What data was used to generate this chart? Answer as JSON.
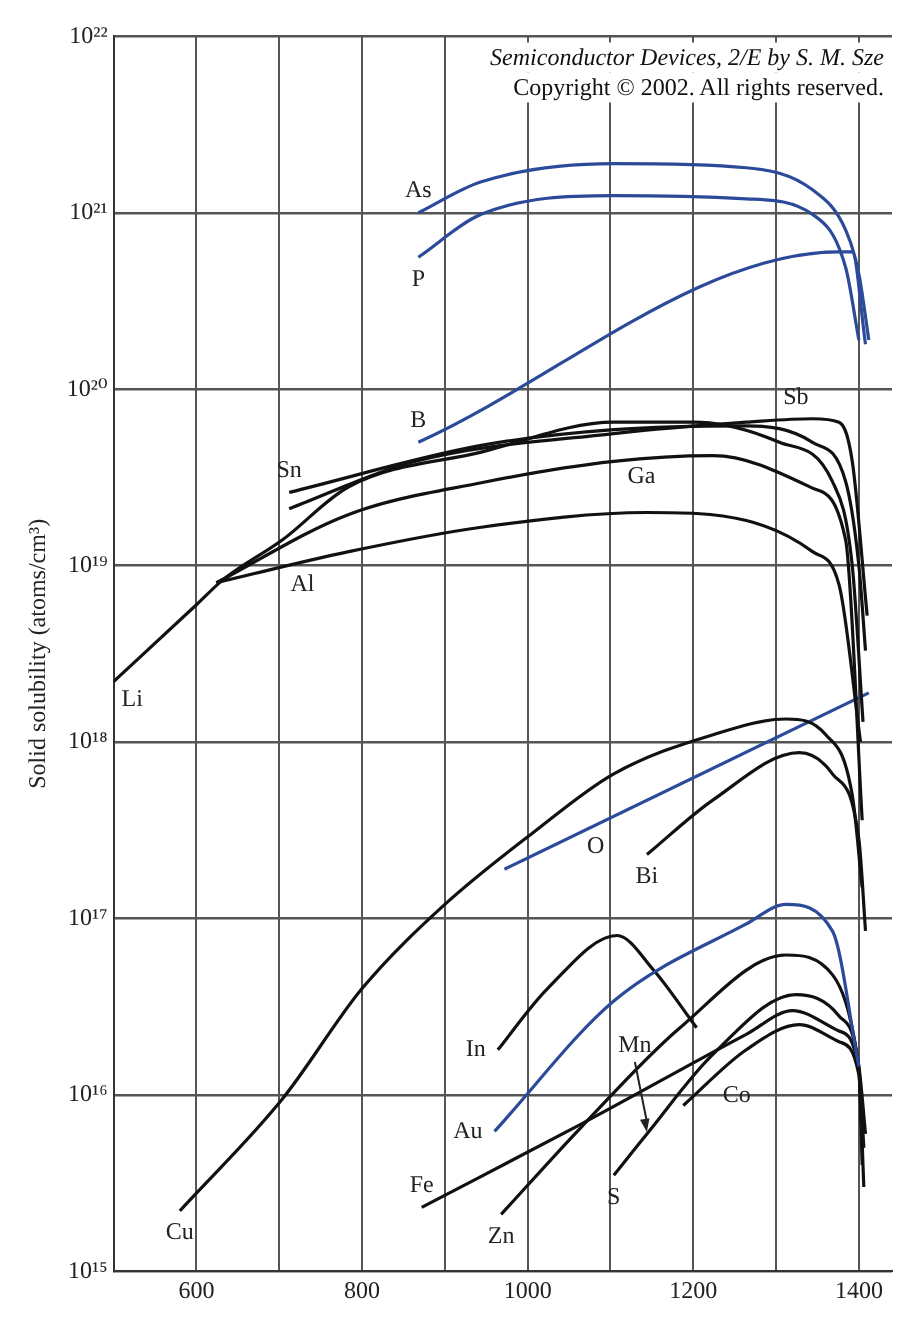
{
  "chart_data": {
    "type": "line",
    "ylabel": "Solid solubility (atoms/cm³)",
    "log": "y",
    "grid": true,
    "marker": "none",
    "line_style": "solid",
    "legend": false,
    "xlim": [
      500,
      1440
    ],
    "xticks": [
      {
        "value": 500,
        "label": null
      },
      600,
      {
        "value": 700,
        "label": null
      },
      800,
      {
        "value": 900,
        "label": null
      },
      1000,
      {
        "value": 1100,
        "label": null
      },
      1200,
      {
        "value": 1300,
        "label": null
      },
      1400
    ],
    "ylim": [
      1000000000000000.0,
      1e+22
    ],
    "yticks": [
      {
        "value": 1000000000000000.0,
        "label": "10¹⁵"
      },
      {
        "value": 1e+16,
        "label": "10¹⁶"
      },
      {
        "value": 1e+17,
        "label": "10¹⁷"
      },
      {
        "value": 1e+18,
        "label": "10¹⁸"
      },
      {
        "value": 1e+19,
        "label": "10¹⁹"
      },
      {
        "value": 1e+20,
        "label": "10²⁰"
      },
      {
        "value": 1e+21,
        "label": "10²¹"
      },
      {
        "value": 1e+22,
        "label": "10²²"
      }
    ],
    "series": [
      {
        "name": "As",
        "color": "#2b4a9a",
        "x": [
          868,
          944,
          1104,
          1264,
          1344,
          1384,
          1400,
          1412
        ],
        "values": [
          1e+21,
          1.5e+21,
          1.9e+21,
          1.8e+21,
          1.35e+21,
          8e+20,
          4.5e+20,
          1.9e+20
        ]
      },
      {
        "name": "P",
        "color": "#2b4a9a",
        "x": [
          868,
          944,
          1104,
          1264,
          1344,
          1384,
          1400
        ],
        "values": [
          5.6e+20,
          9.8e+20,
          1.25e+21,
          1.2e+21,
          9.8e+20,
          4.9e+20,
          1.9e+20
        ]
      },
      {
        "name": "B",
        "color": "#2b4a9a",
        "x": [
          868,
          1376,
          1392,
          1408
        ],
        "values": [
          5e+19,
          6e+20,
          6e+20,
          1.8e+20
        ]
      },
      {
        "name": "Li",
        "color": "#111111",
        "x": [
          500,
          600,
          632,
          704,
          784,
          944,
          1104,
          1200,
          1304,
          1368,
          1392,
          1405
        ],
        "values": [
          2.2e+18,
          6e+18,
          8.3e+18,
          1.4e+19,
          2.8e+19,
          4.4e+19,
          6.5e+19,
          6.5e+19,
          5e+19,
          3e+19,
          1e+19,
          1.3e+18
        ]
      },
      {
        "name": "Sn",
        "color": "#111111",
        "x": [
          712,
          944,
          1104,
          1264,
          1344,
          1384,
          1400,
          1408
        ],
        "values": [
          2.6e+19,
          4.8e+19,
          5.9e+19,
          6.2e+19,
          5e+19,
          3e+19,
          1e+19,
          3.3e+18
        ]
      },
      {
        "name": "Sb",
        "color": "#111111",
        "x": [
          712,
          864,
          1104,
          1264,
          1344,
          1376,
          1392,
          1410
        ],
        "values": [
          2.1e+19,
          3.9e+19,
          5.6e+19,
          6.5e+19,
          6.8e+19,
          6.5e+19,
          3.9e+19,
          5.2e+18
        ]
      },
      {
        "name": "Ga",
        "color": "#111111",
        "x": [
          624,
          784,
          944,
          1104,
          1224,
          1344,
          1384,
          1404
        ],
        "values": [
          8e+18,
          1.95e+19,
          2.95e+19,
          3.9e+19,
          4.2e+19,
          2.75e+19,
          1.4e+19,
          3.6e+17
        ]
      },
      {
        "name": "Al",
        "color": "#111111",
        "x": [
          624,
          784,
          944,
          1144,
          1264,
          1344,
          1376,
          1402
        ],
        "values": [
          8e+18,
          1.2e+19,
          1.65e+19,
          2e+19,
          1.8e+19,
          1.2e+19,
          7.8e+18,
          1e+18
        ]
      },
      {
        "name": "Cu",
        "color": "#111111",
        "x": [
          580,
          704,
          800,
          900,
          1008,
          1104,
          1224,
          1312,
          1360,
          1392,
          1404
        ],
        "values": [
          2200000000000000.0,
          9500000000000000.0,
          4e+16,
          1.2e+17,
          3.1e+17,
          6.6e+17,
          1.1e+18,
          1.35e+18,
          1.1e+18,
          5e+17,
          1.5e+17
        ]
      },
      {
        "name": "Bi",
        "color": "#111111",
        "x": [
          1144,
          1224,
          1328,
          1368,
          1400,
          1408
        ],
        "values": [
          2.3e+17,
          4.7e+17,
          8.7e+17,
          6.6e+17,
          2.8e+17,
          8.5e+16
        ]
      },
      {
        "name": "O",
        "color": "#2b4a9a",
        "x": [
          972,
          1412
        ],
        "values": [
          1.9e+17,
          1.9e+18
        ]
      },
      {
        "name": "Au",
        "color": "#2b4a9a",
        "x": [
          960,
          1104,
          1264,
          1312,
          1368,
          1400
        ],
        "values": [
          6200000000000000.0,
          3.4e+16,
          9.3e+16,
          1.2e+17,
          8.5e+16,
          1.45e+16
        ]
      },
      {
        "name": "In",
        "color": "#111111",
        "x": [
          964,
          1024,
          1108,
          1152,
          1204
        ],
        "values": [
          1.8e+16,
          4e+16,
          8e+16,
          5.1e+16,
          2.4e+16
        ]
      },
      {
        "name": "Zn",
        "color": "#111111",
        "x": [
          968,
          1064,
          1184,
          1312,
          1368,
          1400,
          1408
        ],
        "values": [
          2100000000000000.0,
          6500000000000000.0,
          2.4e+16,
          6.2e+16,
          4.8e+16,
          1.45e+16,
          6000000000000000.0
        ]
      },
      {
        "name": "S",
        "color": "#111111",
        "x": [
          1104,
          1144,
          1224,
          1324,
          1376,
          1400,
          1406
        ],
        "values": [
          3500000000000000.0,
          6000000000000000.0,
          1.7e+16,
          3.7e+16,
          2.8e+16,
          1.4e+16,
          5000000000000000.0
        ]
      },
      {
        "name": "Fe",
        "color": "#111111",
        "x": [
          872,
          1064,
          1264,
          1320,
          1376,
          1400,
          1404
        ],
        "values": [
          2300000000000000.0,
          6800000000000000.0,
          2.2e+16,
          3e+16,
          2.3e+16,
          1.4e+16,
          4000000000000000.0
        ]
      },
      {
        "name": "Co",
        "color": "#111111",
        "x": [
          1188,
          1264,
          1328,
          1376,
          1400,
          1406
        ],
        "values": [
          8700000000000000.0,
          1.8e+16,
          2.5e+16,
          2e+16,
          1.3e+16,
          3000000000000000.0
        ]
      }
    ],
    "annotations": [
      "Semiconductor Devices, 2/E by S. M. Sze",
      "Copyright © 2002. All rights reserved.",
      {
        "text": "Mn",
        "x": 1144,
        "y": 6000000000000000.0
      }
    ]
  }
}
